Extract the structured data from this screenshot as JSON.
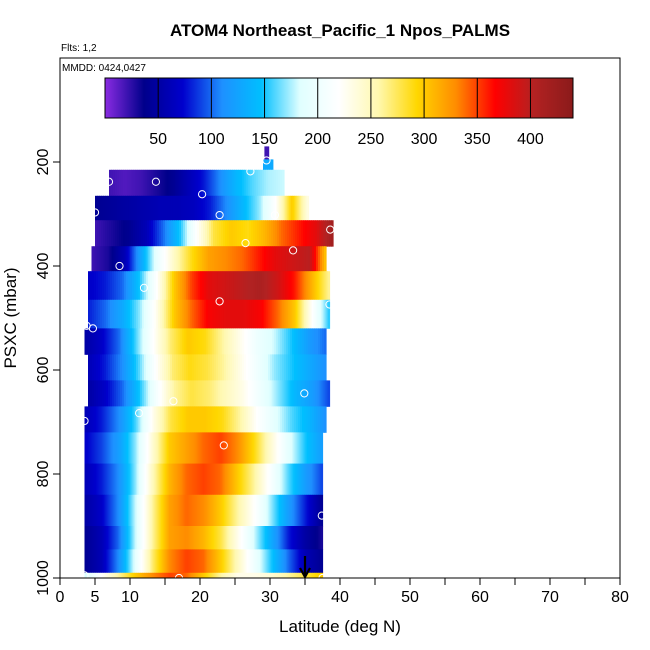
{
  "chart_data": {
    "type": "heatmap",
    "title": "ATOM4 Northeast_Pacific_1 Npos_PALMS",
    "flights_note": "Flts: 1,2",
    "dates_note": "MMDD: 0424,0427",
    "xlabel": "Latitude (deg N)",
    "ylabel": "PSXC (mbar)",
    "xlim": [
      0,
      80
    ],
    "ylim": [
      1000,
      0
    ],
    "x_ticks": [
      0,
      5,
      10,
      20,
      30,
      40,
      50,
      60,
      70,
      80
    ],
    "y_ticks": [
      200,
      400,
      600,
      800,
      1000
    ],
    "colorbar": {
      "range": [
        0,
        440
      ],
      "ticks": [
        50,
        100,
        150,
        200,
        250,
        300,
        350,
        400
      ],
      "colors": [
        "#8a2be2",
        "#00008b",
        "#0000cd",
        "#1e90ff",
        "#00bfff",
        "#e0ffff",
        "#ffffff",
        "#fff8b0",
        "#ffd700",
        "#ff8c00",
        "#ff0000",
        "#b22222",
        "#8b1a1a"
      ]
    },
    "arrow_latitude": 35,
    "rows": [
      {
        "p_top": 170,
        "p_bot": 195,
        "x0": 29.2,
        "x1": 29.8,
        "values": [
          20
        ]
      },
      {
        "p_top": 195,
        "p_bot": 215,
        "x0": 29.0,
        "x1": 30.4,
        "values": [
          130
        ]
      },
      {
        "p_top": 215,
        "p_bot": 265,
        "x0": 7,
        "x1": 32,
        "values": [
          20,
          15,
          20,
          30,
          40,
          60,
          80,
          110,
          140,
          160,
          175,
          180
        ]
      },
      {
        "p_top": 265,
        "p_bot": 312,
        "x0": 5,
        "x1": 35.5,
        "values": [
          40,
          45,
          50,
          55,
          60,
          60,
          65,
          80,
          110,
          140,
          170,
          220,
          300,
          230
        ]
      },
      {
        "p_top": 312,
        "p_bot": 362,
        "x0": 5,
        "x1": 39,
        "values": [
          20,
          30,
          40,
          60,
          100,
          150,
          220,
          280,
          300,
          290,
          310,
          340,
          360,
          380,
          420
        ]
      },
      {
        "p_top": 362,
        "p_bot": 410,
        "x0": 4.5,
        "x1": 38,
        "values": [
          20,
          30,
          60,
          130,
          200,
          250,
          290,
          320,
          330,
          340,
          360,
          380,
          390,
          400,
          300
        ]
      },
      {
        "p_top": 410,
        "p_bot": 465,
        "x0": 4,
        "x1": 38.5,
        "values": [
          70,
          80,
          100,
          150,
          220,
          300,
          350,
          380,
          390,
          400,
          410,
          390,
          360,
          310,
          260
        ]
      },
      {
        "p_top": 465,
        "p_bot": 520,
        "x0": 4,
        "x1": 38.5,
        "values": [
          80,
          100,
          130,
          170,
          230,
          300,
          340,
          370,
          380,
          380,
          370,
          340,
          300,
          220,
          150
        ]
      },
      {
        "p_top": 520,
        "p_bot": 570,
        "x0": 3.5,
        "x1": 38,
        "values": [
          50,
          70,
          100,
          160,
          220,
          270,
          300,
          290,
          260,
          230,
          200,
          180,
          150,
          120,
          100
        ]
      },
      {
        "p_top": 570,
        "p_bot": 620,
        "x0": 4,
        "x1": 38,
        "values": [
          60,
          80,
          110,
          160,
          220,
          270,
          290,
          280,
          260,
          230,
          200,
          170,
          150,
          130,
          110
        ]
      },
      {
        "p_top": 620,
        "p_bot": 670,
        "x0": 4,
        "x1": 38.5,
        "values": [
          50,
          70,
          100,
          150,
          210,
          260,
          280,
          270,
          250,
          230,
          200,
          170,
          140,
          120,
          90
        ]
      },
      {
        "p_top": 670,
        "p_bot": 720,
        "x0": 3.5,
        "x1": 38,
        "values": [
          60,
          80,
          110,
          160,
          230,
          280,
          300,
          300,
          290,
          260,
          220,
          190,
          160,
          140,
          110
        ]
      },
      {
        "p_top": 720,
        "p_bot": 780,
        "x0": 3.5,
        "x1": 37.5,
        "values": [
          70,
          90,
          120,
          170,
          240,
          300,
          320,
          340,
          350,
          330,
          290,
          240,
          190,
          150,
          120
        ]
      },
      {
        "p_top": 780,
        "p_bot": 840,
        "x0": 3.5,
        "x1": 37.5,
        "values": [
          60,
          80,
          110,
          170,
          250,
          310,
          340,
          350,
          340,
          300,
          260,
          210,
          160,
          120,
          90
        ]
      },
      {
        "p_top": 840,
        "p_bot": 900,
        "x0": 3.5,
        "x1": 37.5,
        "values": [
          50,
          70,
          110,
          180,
          260,
          320,
          340,
          330,
          300,
          260,
          220,
          170,
          120,
          80,
          40
        ]
      },
      {
        "p_top": 900,
        "p_bot": 945,
        "x0": 3.5,
        "x1": 37.5,
        "values": [
          40,
          60,
          100,
          180,
          260,
          320,
          330,
          310,
          280,
          230,
          180,
          130,
          80,
          50,
          30
        ]
      },
      {
        "p_top": 945,
        "p_bot": 990,
        "x0": 3.5,
        "x1": 37.5,
        "values": [
          40,
          60,
          110,
          190,
          270,
          330,
          350,
          340,
          300,
          250,
          200,
          150,
          100,
          60,
          40
        ]
      },
      {
        "p_top": 990,
        "p_bot": 1005,
        "x0": 3.5,
        "x1": 37.5,
        "values": [
          180,
          220,
          260,
          300,
          330,
          350,
          340,
          300,
          260,
          230,
          230,
          240,
          260,
          280,
          300
        ]
      }
    ],
    "markers": [
      [
        29.5,
        197
      ],
      [
        27.2,
        218
      ],
      [
        7,
        238
      ],
      [
        13.7,
        238
      ],
      [
        20.3,
        262
      ],
      [
        5,
        297
      ],
      [
        22.8,
        302
      ],
      [
        30.7,
        302
      ],
      [
        38.6,
        330
      ],
      [
        26.5,
        356
      ],
      [
        33.3,
        370
      ],
      [
        8.5,
        400
      ],
      [
        12,
        442
      ],
      [
        22.8,
        468
      ],
      [
        38.5,
        474
      ],
      [
        3.8,
        515
      ],
      [
        4.7,
        520
      ],
      [
        34.9,
        645
      ],
      [
        16.2,
        660
      ],
      [
        11.3,
        683
      ],
      [
        3.5,
        698
      ],
      [
        23.4,
        745
      ],
      [
        37.4,
        880
      ],
      [
        3.5,
        995
      ],
      [
        17,
        1000
      ],
      [
        37.5,
        1000
      ]
    ]
  }
}
